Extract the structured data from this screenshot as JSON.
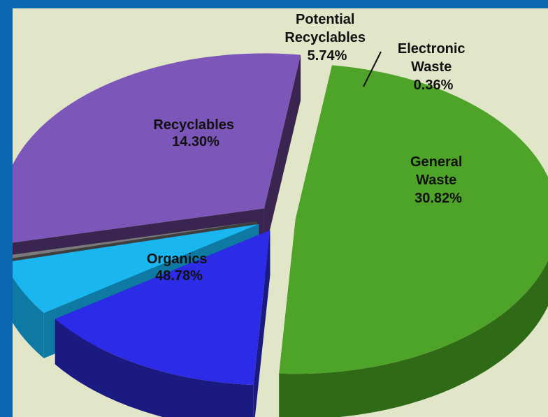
{
  "chart_data": {
    "type": "pie",
    "three_d": true,
    "exploded": true,
    "legend": "none",
    "slices": [
      {
        "label": "Organics",
        "value": 48.78,
        "value_label": "48.78%",
        "color": "#4ea428",
        "side_color": "#2f6a16"
      },
      {
        "label": "Recyclables",
        "value": 14.3,
        "value_label": "14.30%",
        "color": "#2c2ce8",
        "side_color": "#1a1a80"
      },
      {
        "label": "Potential Recyclables",
        "value": 5.74,
        "value_label": "5.74%",
        "color": "#1ab6f0",
        "side_color": "#0e79a3"
      },
      {
        "label": "Electronic Waste",
        "value": 0.36,
        "value_label": "0.36%",
        "color": "#7a7a7a",
        "side_color": "#3e3e3e"
      },
      {
        "label": "General Waste",
        "value": 30.82,
        "value_label": "30.82%",
        "color": "#7c56b8",
        "side_color": "#3a2550"
      }
    ]
  },
  "colors": {
    "background_border": "#0a68b2",
    "plot_background": "#e1e6c8"
  }
}
